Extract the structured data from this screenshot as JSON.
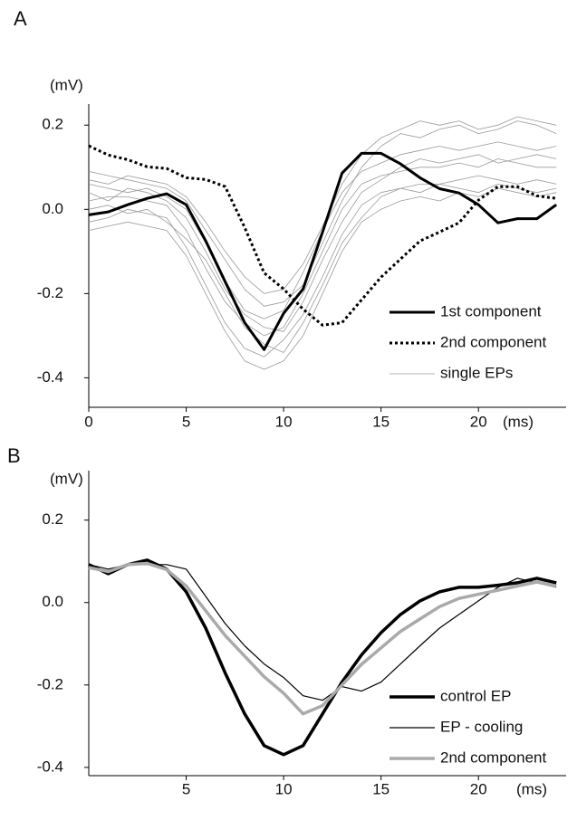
{
  "chart_data": [
    {
      "type": "line",
      "panel_label": "A",
      "y_label": "(mV)",
      "x_label": "(ms)",
      "xlim": [
        0,
        24.5
      ],
      "ylim": [
        -0.47,
        0.25
      ],
      "xticks": [
        0,
        5,
        10,
        15,
        20
      ],
      "yticks": [
        -0.4,
        -0.2,
        {
          "value": 0,
          "label": "0.0"
        },
        0.2
      ],
      "legend": "lower right",
      "x": [
        0,
        1,
        2,
        3,
        4,
        5,
        6,
        7,
        8,
        9,
        10,
        11,
        12,
        13,
        14,
        15,
        16,
        17,
        18,
        19,
        20,
        21,
        22,
        23,
        24
      ],
      "series": [
        {
          "name": "single EPs",
          "color": "#9a9a9a",
          "width": 0.8,
          "style": "solid",
          "values": [
            [
              0.02,
              0.03,
              0.03,
              0.02,
              0.01,
              -0.05,
              -0.14,
              -0.22,
              -0.27,
              -0.3,
              -0.28,
              -0.2,
              -0.1,
              0.0,
              0.06,
              0.08,
              0.09,
              0.1,
              0.1,
              0.11,
              0.1,
              0.12,
              0.11,
              0.1,
              0.1
            ],
            [
              0.06,
              0.05,
              0.04,
              0.05,
              0.03,
              0.0,
              -0.08,
              -0.17,
              -0.24,
              -0.26,
              -0.24,
              -0.15,
              -0.05,
              0.04,
              0.09,
              0.11,
              0.13,
              0.14,
              0.15,
              0.14,
              0.15,
              0.16,
              0.15,
              0.14,
              0.15
            ],
            [
              -0.03,
              -0.02,
              0.0,
              -0.01,
              -0.02,
              -0.09,
              -0.18,
              -0.27,
              -0.33,
              -0.35,
              -0.31,
              -0.25,
              -0.16,
              -0.06,
              0.01,
              0.04,
              0.05,
              0.06,
              0.06,
              0.07,
              0.08,
              0.07,
              0.06,
              0.07,
              0.06
            ],
            [
              0.09,
              0.08,
              0.07,
              0.06,
              0.05,
              0.02,
              -0.05,
              -0.12,
              -0.19,
              -0.23,
              -0.22,
              -0.18,
              -0.08,
              0.02,
              0.1,
              0.15,
              0.18,
              0.17,
              0.19,
              0.2,
              0.18,
              0.19,
              0.21,
              0.2,
              0.18
            ],
            [
              0.0,
              0.01,
              -0.01,
              0.0,
              -0.03,
              -0.07,
              -0.12,
              -0.2,
              -0.28,
              -0.32,
              -0.34,
              -0.27,
              -0.18,
              -0.08,
              -0.02,
              0.03,
              0.05,
              0.04,
              0.06,
              0.05,
              0.04,
              0.06,
              0.05,
              0.04,
              0.05
            ],
            [
              0.04,
              0.02,
              0.05,
              0.04,
              0.02,
              -0.02,
              -0.1,
              -0.19,
              -0.25,
              -0.28,
              -0.29,
              -0.22,
              -0.12,
              -0.03,
              0.04,
              0.07,
              0.1,
              0.12,
              0.11,
              0.12,
              0.13,
              0.11,
              0.12,
              0.13,
              0.12
            ],
            [
              -0.05,
              -0.04,
              -0.03,
              -0.04,
              -0.05,
              -0.11,
              -0.2,
              -0.29,
              -0.36,
              -0.38,
              -0.36,
              -0.3,
              -0.2,
              -0.1,
              -0.03,
              0.0,
              0.02,
              0.03,
              0.02,
              0.04,
              0.03,
              0.05,
              0.04,
              0.03,
              0.04
            ],
            [
              0.07,
              0.06,
              0.08,
              0.07,
              0.06,
              0.03,
              -0.03,
              -0.1,
              -0.16,
              -0.2,
              -0.19,
              -0.13,
              -0.04,
              0.06,
              0.13,
              0.17,
              0.19,
              0.21,
              0.2,
              0.21,
              0.19,
              0.2,
              0.22,
              0.21,
              0.2
            ]
          ]
        },
        {
          "name": "1st component",
          "color": "#000000",
          "width": 3,
          "style": "solid",
          "values": [
            -0.013,
            -0.006,
            0.011,
            0.026,
            0.037,
            0.011,
            -0.075,
            -0.172,
            -0.269,
            -0.333,
            -0.247,
            -0.189,
            -0.054,
            0.086,
            0.133,
            0.133,
            0.108,
            0.075,
            0.049,
            0.039,
            0.011,
            -0.032,
            -0.022,
            -0.022,
            0.011
          ]
        },
        {
          "name": "2nd component",
          "color": "#000000",
          "width": 3,
          "style": "dotted",
          "values": [
            0.151,
            0.129,
            0.118,
            0.101,
            0.097,
            0.075,
            0.071,
            0.054,
            -0.043,
            -0.151,
            -0.189,
            -0.237,
            -0.275,
            -0.269,
            -0.215,
            -0.161,
            -0.118,
            -0.075,
            -0.054,
            -0.032,
            0.022,
            0.054,
            0.054,
            0.032,
            0.026
          ]
        }
      ]
    },
    {
      "type": "line",
      "panel_label": "B",
      "y_label": "(mV)",
      "x_label": "(ms)",
      "xlim": [
        0,
        24.5
      ],
      "ylim": [
        -0.42,
        0.32
      ],
      "xticks": [
        5,
        10,
        15,
        20
      ],
      "yticks": [
        -0.4,
        -0.2,
        {
          "value": 0,
          "label": "0.0"
        },
        0.2
      ],
      "legend": "lower right",
      "x": [
        0,
        1,
        2,
        3,
        4,
        5,
        6,
        7,
        8,
        9,
        10,
        11,
        12,
        13,
        14,
        15,
        16,
        17,
        18,
        19,
        20,
        21,
        22,
        23,
        24
      ],
      "series": [
        {
          "name": "control EP",
          "color": "#000000",
          "width": 3.5,
          "style": "solid",
          "values": [
            0.092,
            0.07,
            0.092,
            0.103,
            0.081,
            0.026,
            -0.062,
            -0.171,
            -0.27,
            -0.347,
            -0.369,
            -0.347,
            -0.27,
            -0.193,
            -0.127,
            -0.073,
            -0.029,
            0.004,
            0.026,
            0.037,
            0.037,
            0.042,
            0.048,
            0.059,
            0.048
          ]
        },
        {
          "name": "EP - cooling",
          "color": "#000000",
          "width": 1.2,
          "style": "solid",
          "values": [
            0.092,
            0.081,
            0.092,
            0.092,
            0.092,
            0.081,
            0.015,
            -0.051,
            -0.105,
            -0.149,
            -0.182,
            -0.226,
            -0.237,
            -0.204,
            -0.215,
            -0.193,
            -0.149,
            -0.105,
            -0.062,
            -0.029,
            0.004,
            0.037,
            0.059,
            0.048,
            0.037
          ]
        },
        {
          "name": "2nd component",
          "color": "#aaaaaa",
          "width": 3.5,
          "style": "solid",
          "values": [
            0.085,
            0.075,
            0.092,
            0.095,
            0.08,
            0.04,
            -0.02,
            -0.08,
            -0.13,
            -0.18,
            -0.22,
            -0.27,
            -0.25,
            -0.2,
            -0.15,
            -0.11,
            -0.07,
            -0.04,
            -0.01,
            0.01,
            0.02,
            0.03,
            0.04,
            0.05,
            0.04
          ]
        }
      ]
    }
  ]
}
